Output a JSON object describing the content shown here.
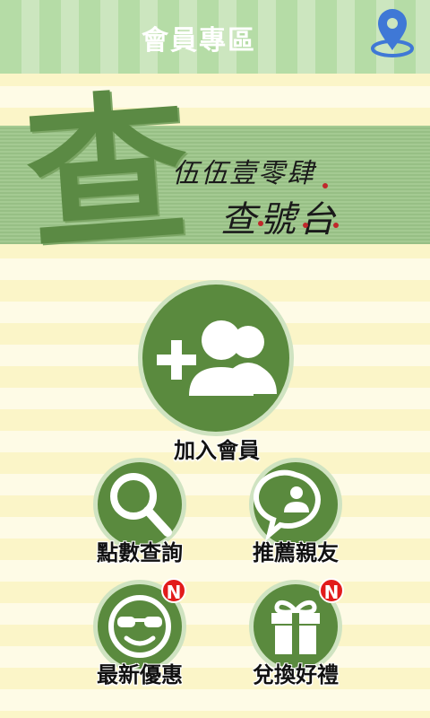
{
  "header": {
    "title": "會員專區",
    "map_icon": "map-pin-icon"
  },
  "banner": {
    "big_char": "查",
    "line1": "伍伍壹零肆",
    "line2": "查號台"
  },
  "actions": {
    "join": {
      "label": "加入會員",
      "icon": "add-group-icon"
    },
    "points": {
      "label": "點數查詢",
      "icon": "search-icon"
    },
    "refer": {
      "label": "推薦親友",
      "icon": "chat-user-icon"
    },
    "news": {
      "label": "最新優惠",
      "icon": "smiley-sunglasses-icon",
      "badge": "N"
    },
    "gift": {
      "label": "兌換好禮",
      "icon": "gift-icon",
      "badge": "N"
    }
  },
  "colors": {
    "accent": "#5a8a3e",
    "badge": "#e21b1b",
    "map_pin": "#3f78d6"
  }
}
